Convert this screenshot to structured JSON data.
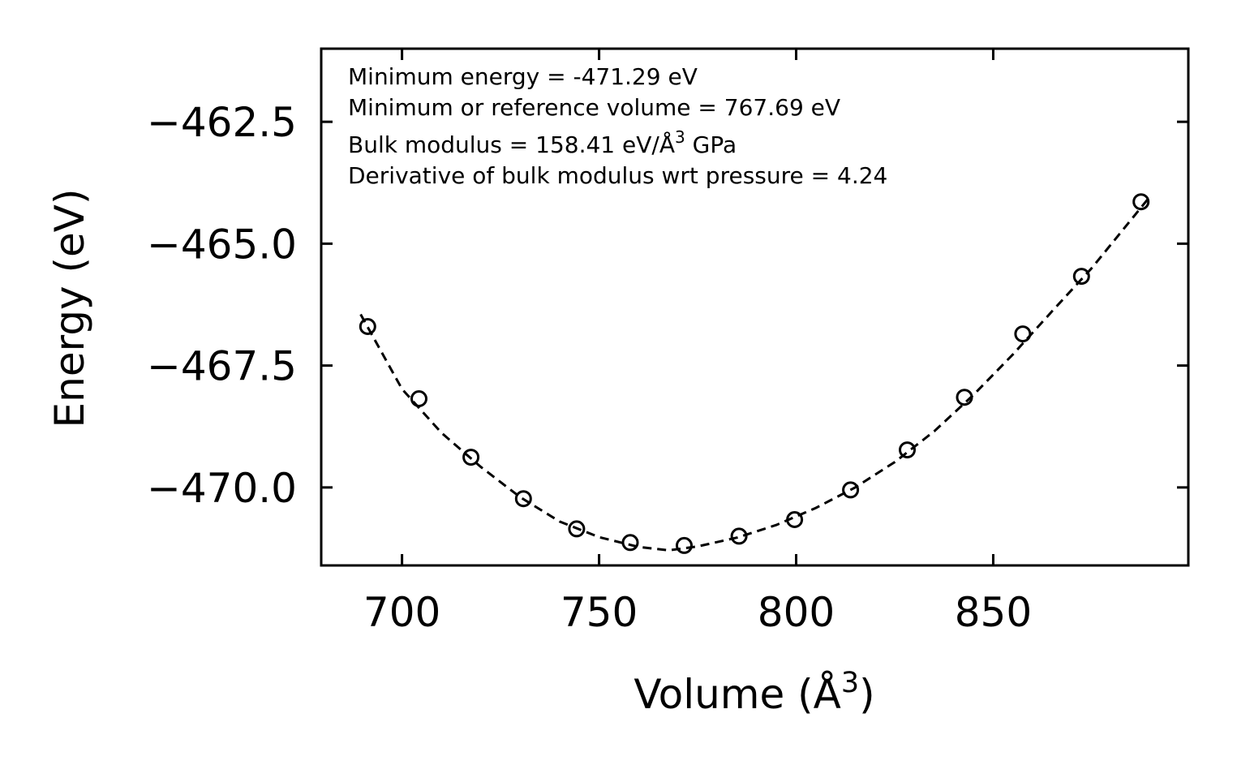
{
  "chart_data": {
    "type": "scatter",
    "xlabel": "Volume (Å",
    "xlabel_sup": "3",
    "xlabel_tail": ")",
    "ylabel": "Energy (eV)",
    "xlim": [
      679.5,
      899.5
    ],
    "ylim": [
      -471.6,
      -461.0
    ],
    "x_ticks": [
      700,
      750,
      800,
      850
    ],
    "x_tick_labels": [
      "700",
      "750",
      "800",
      "850"
    ],
    "y_ticks": [
      -462.5,
      -465.0,
      -467.5,
      -470.0
    ],
    "y_tick_labels": [
      "−462.5",
      "−465.0",
      "−467.5",
      "−470.0"
    ],
    "annotations": [
      "Minimum energy = -471.29 eV",
      "Minimum or reference volume = 767.69 eV",
      "Bulk modulus = 158.41 eV/Å",
      "Derivative of bulk modulus wrt pressure = 4.24"
    ],
    "annotation_sup": "3",
    "annotation_sup_tail": " GPa",
    "series": [
      {
        "name": "data",
        "marker": "open-circle",
        "x": [
          691.3,
          704.3,
          717.5,
          730.8,
          744.3,
          757.9,
          771.6,
          785.5,
          799.6,
          813.8,
          828.2,
          842.7,
          857.5,
          872.4,
          887.5
        ],
        "y": [
          -466.7,
          -468.18,
          -469.38,
          -470.23,
          -470.85,
          -471.13,
          -471.19,
          -471.0,
          -470.66,
          -470.05,
          -469.23,
          -468.15,
          -466.85,
          -465.67,
          -464.14
        ]
      },
      {
        "name": "fit",
        "style": "dashed",
        "x": [
          689.5,
          700,
          710,
          720,
          730,
          740,
          750,
          760,
          767.69,
          775,
          785,
          795,
          805,
          815,
          825,
          835,
          845,
          855,
          865,
          875,
          889.5
        ],
        "y": [
          -466.45,
          -467.98,
          -468.88,
          -469.58,
          -470.2,
          -470.7,
          -471.02,
          -471.22,
          -471.29,
          -471.21,
          -471.03,
          -470.77,
          -470.42,
          -470.0,
          -469.48,
          -468.85,
          -468.1,
          -467.27,
          -466.38,
          -465.5,
          -464.06
        ]
      }
    ]
  }
}
